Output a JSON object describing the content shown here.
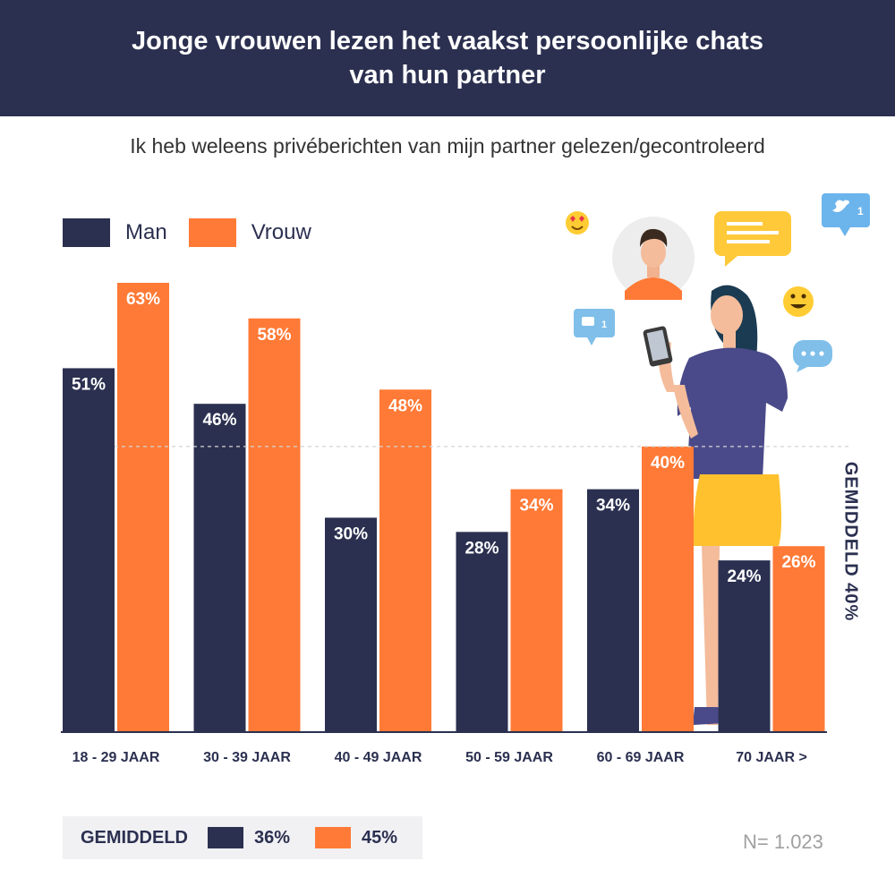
{
  "header": {
    "title": "Jonge vrouwen lezen het vaakst persoonlijke chats van hun partner"
  },
  "subtitle": "Ik heb weleens privéberichten van mijn partner gelezen/gecontroleerd",
  "colors": {
    "man": "#2b3050",
    "vrouw": "#ff7a36",
    "header_bg": "#2b3050"
  },
  "chart_data": {
    "type": "bar",
    "categories": [
      "18 - 29 JAAR",
      "30 - 39 JAAR",
      "40 - 49 JAAR",
      "50 - 59 JAAR",
      "60 - 69 JAAR",
      "70 JAAR >"
    ],
    "series": [
      {
        "name": "Man",
        "values": [
          51,
          46,
          30,
          28,
          34,
          24
        ],
        "labels": [
          "51%",
          "46%",
          "30%",
          "28%",
          "34%",
          "24%"
        ]
      },
      {
        "name": "Vrouw",
        "values": [
          63,
          58,
          48,
          34,
          40,
          26
        ],
        "labels": [
          "63%",
          "58%",
          "48%",
          "34%",
          "40%",
          "26%"
        ]
      }
    ],
    "ylim": [
      0,
      63
    ],
    "average_line": {
      "value": 40,
      "label": "GEMIDDELD 40%"
    },
    "legend": "top-left",
    "grid": false
  },
  "footer": {
    "average_label": "GEMIDDELD",
    "man_value": "36%",
    "vrouw_value": "45%",
    "sample_size": "N= 1.023"
  },
  "illustration": {
    "icons": [
      "heart-eyes-emoji-icon",
      "person-avatar-icon",
      "chat-bubble-icon",
      "twitter-notification-icon",
      "comment-notification-icon",
      "smile-emoji-icon",
      "typing-bubble-icon",
      "woman-with-phone-illustration"
    ],
    "badges": [
      "1",
      "1"
    ]
  }
}
